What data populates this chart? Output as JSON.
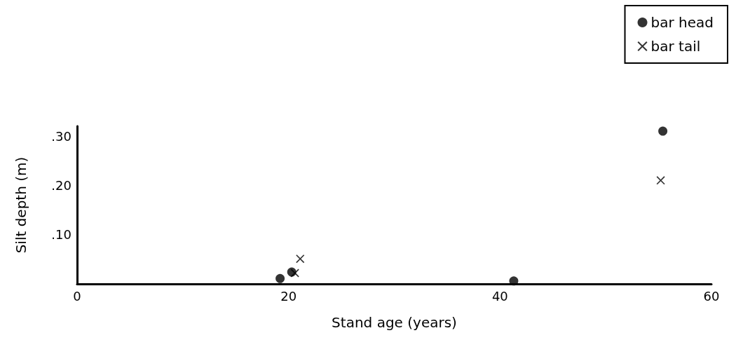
{
  "chart_data": {
    "type": "scatter",
    "xlabel": "Stand age (years)",
    "ylabel": "Silt depth (m)",
    "xlim": [
      0,
      60
    ],
    "xticks": [
      0,
      20,
      40,
      60
    ],
    "ylim": [
      0,
      0.32
    ],
    "yticks": [
      {
        "value": 0.1,
        "label": ".10"
      },
      {
        "value": 0.2,
        "label": ".20"
      },
      {
        "value": 0.3,
        "label": ".30"
      }
    ],
    "grid": false,
    "legend": "top right",
    "series": [
      {
        "name": "bar head",
        "color": "#000000",
        "marker": "circle",
        "x": [
          19.2,
          20.3,
          41.3,
          55.4
        ],
        "values": [
          0.011,
          0.024,
          0.006,
          0.31
        ]
      },
      {
        "name": "bar tail",
        "color": "#000000",
        "marker": "cross",
        "x": [
          20.6,
          21.1,
          55.2
        ],
        "values": [
          0.022,
          0.051,
          0.21
        ]
      }
    ]
  }
}
